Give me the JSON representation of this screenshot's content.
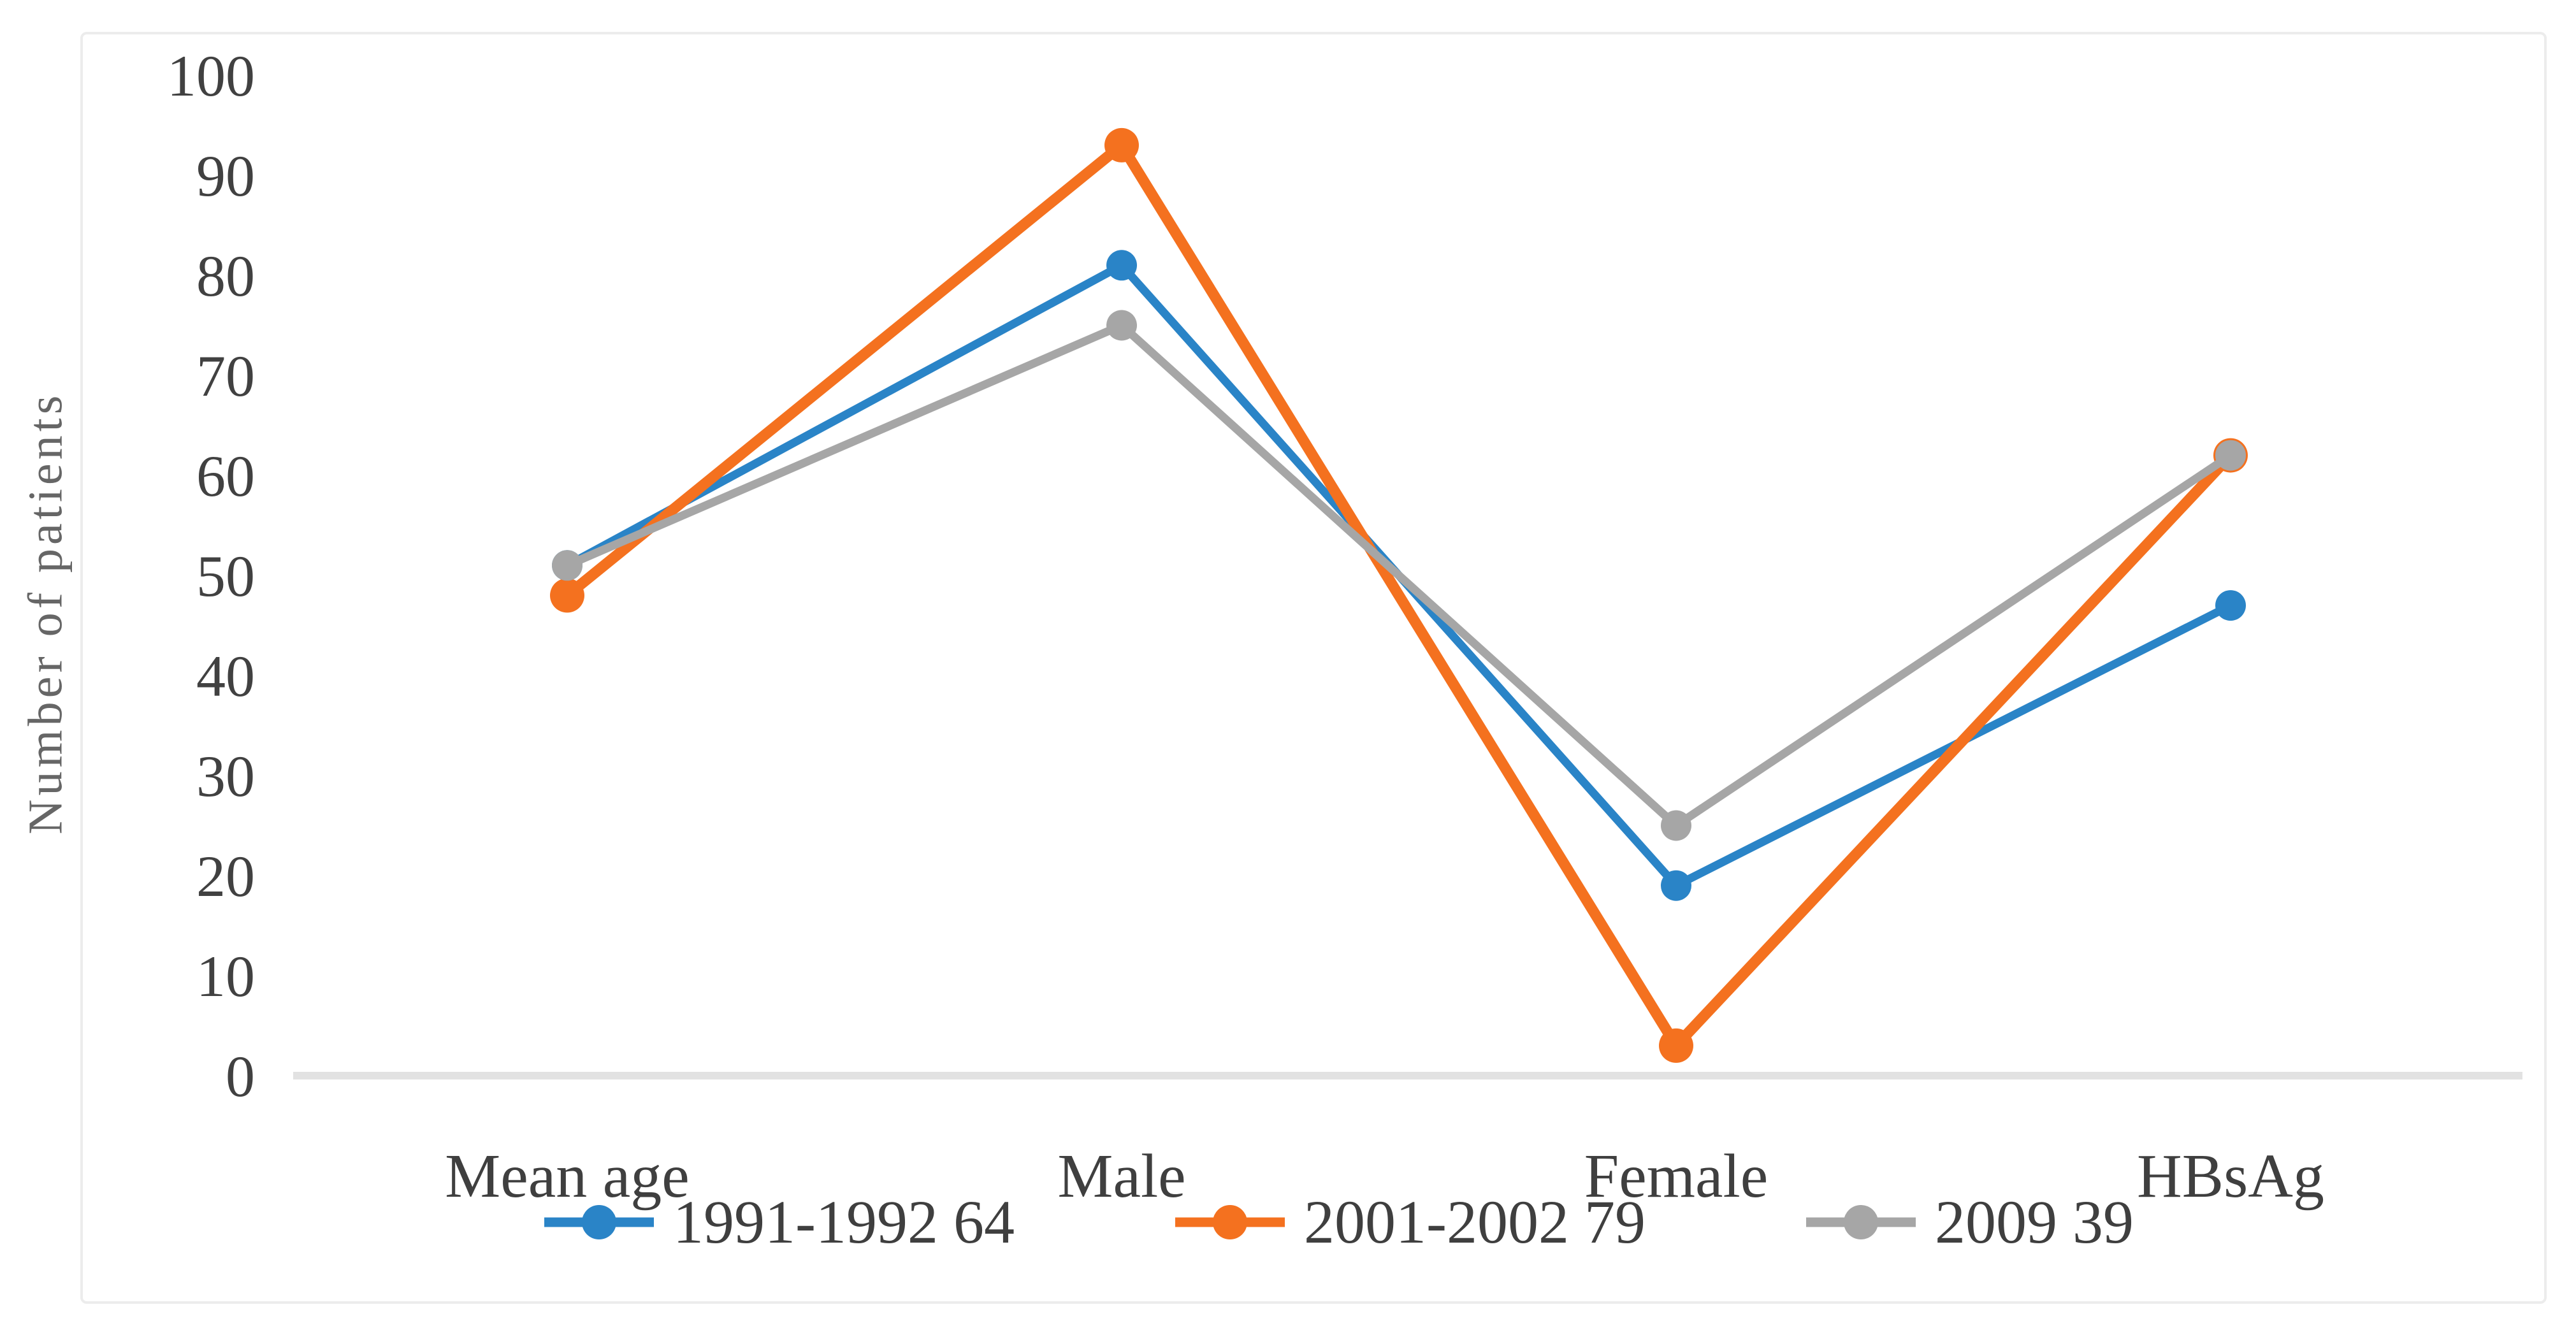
{
  "chart_data": {
    "type": "line",
    "ylabel": "Number of patients",
    "xlabel": "",
    "categories": [
      "Mean age",
      "Male",
      "Female",
      "HBsAg"
    ],
    "series": [
      {
        "name": "1991-1992 64",
        "color": "#2A84C7",
        "values": [
          51,
          81,
          19,
          47
        ]
      },
      {
        "name": "2001-2002 79",
        "color": "#F4711F",
        "values": [
          48,
          93,
          3,
          62
        ]
      },
      {
        "name": "2009 39",
        "color": "#A6A6A6",
        "values": [
          51,
          75,
          25,
          62
        ]
      }
    ],
    "ylim": [
      0,
      100
    ],
    "yticks": [
      0,
      10,
      20,
      30,
      40,
      50,
      60,
      70,
      80,
      90,
      100
    ],
    "grid": false,
    "legend_position": "bottom",
    "marker": "circle",
    "axis_line_color": "#E2E2E2",
    "text_color": "#3F3F3F"
  }
}
